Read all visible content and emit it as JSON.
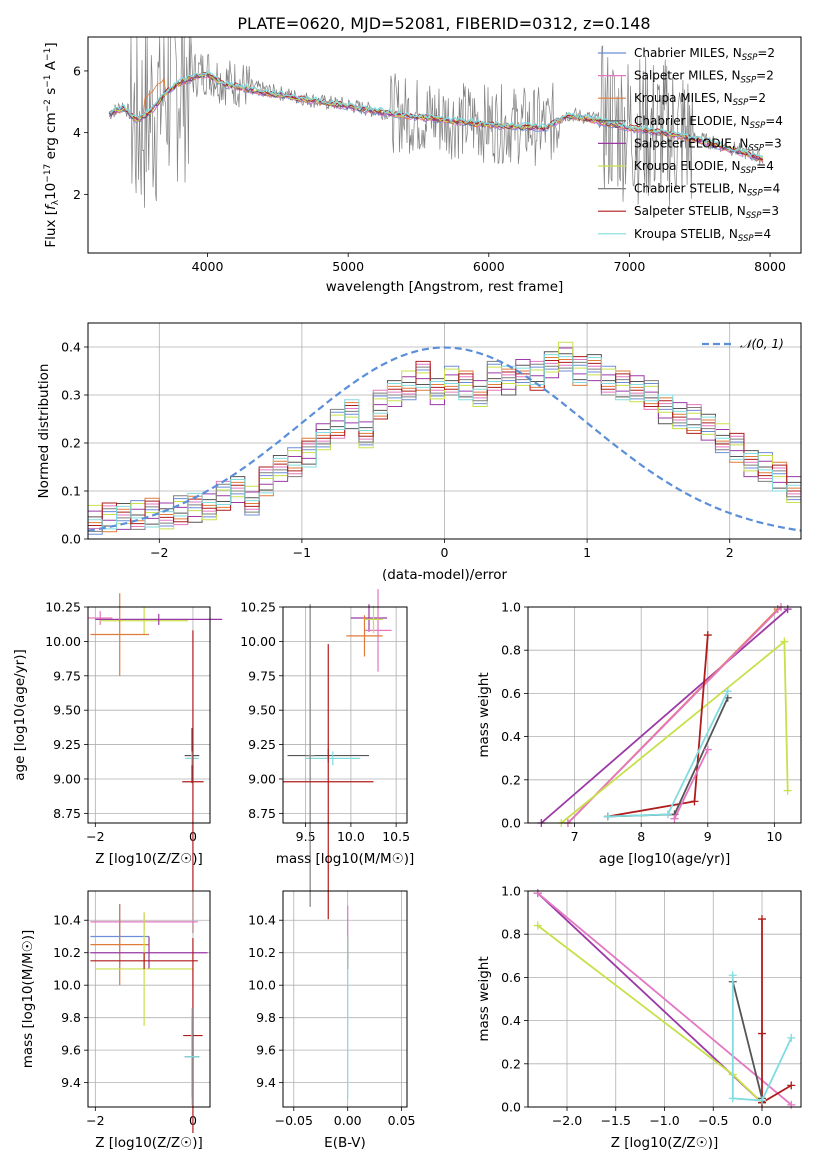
{
  "title": "PLATE=0620, MJD=52081, FIBERID=0312, z=0.148",
  "series_names": [
    {
      "base": "Chabrier MILES, N",
      "sub": "SSP",
      "tail": "=2",
      "color": "#6b8fd6"
    },
    {
      "base": "Salpeter MILES, N",
      "sub": "SSP",
      "tail": "=2",
      "color": "#e377c2"
    },
    {
      "base": "Kroupa MILES, N",
      "sub": "SSP",
      "tail": "=2",
      "color": "#e07b39"
    },
    {
      "base": "Chabrier ELODIE, N",
      "sub": "SSP",
      "tail": "=4",
      "color": "#555555"
    },
    {
      "base": "Salpeter ELODIE, N",
      "sub": "SSP",
      "tail": "=3",
      "color": "#9b3aa6"
    },
    {
      "base": "Kroupa ELODIE, N",
      "sub": "SSP",
      "tail": "=4",
      "color": "#c8e04a"
    },
    {
      "base": "Chabrier STELIB, N",
      "sub": "SSP",
      "tail": "=4",
      "color": "#7f7f7f"
    },
    {
      "base": "Salpeter STELIB, N",
      "sub": "SSP",
      "tail": "=3",
      "color": "#b01c1c"
    },
    {
      "base": "Kroupa STELIB, N",
      "sub": "SSP",
      "tail": "=4",
      "color": "#80dce0"
    }
  ],
  "chart_data": [
    {
      "id": "spectrum",
      "type": "line",
      "title": "PLATE=0620, MJD=52081, FIBERID=0312, z=0.148",
      "xlabel": "wavelength [Angstrom, rest frame]",
      "ylabel": "Flux [f_λ 10^-17 erg cm^-2 s^-1 A^-1]",
      "xlim": [
        3150,
        8220
      ],
      "ylim": [
        0.1,
        7.1
      ],
      "xticks": [
        "4000",
        "5000",
        "6000",
        "7000",
        "8000"
      ],
      "yticks": [
        "2",
        "4",
        "6"
      ],
      "grid": false,
      "legend": "upper right",
      "observed_spectrum": {
        "x": [
          3300,
          3400,
          3500,
          3600,
          3700,
          3800,
          3900,
          4000,
          4100,
          4200,
          4400,
          4600,
          4800,
          5000,
          5200,
          5400,
          5600,
          5800,
          6000,
          6200,
          6400,
          6560,
          6700,
          7000,
          7300,
          7500,
          7800,
          8000
        ],
        "y": [
          4.6,
          4.9,
          4.3,
          4.7,
          5.4,
          5.8,
          5.9,
          6.0,
          5.7,
          5.6,
          5.4,
          5.2,
          5.0,
          4.9,
          4.7,
          4.6,
          4.5,
          4.4,
          4.3,
          4.25,
          4.2,
          4.6,
          4.5,
          4.2,
          4.0,
          3.8,
          3.4,
          3.1
        ]
      },
      "model_spectrum": {
        "x": [
          3300,
          3400,
          3500,
          3600,
          3700,
          3800,
          3900,
          4000,
          4100,
          4200,
          4400,
          4600,
          4800,
          5000,
          5200,
          5400,
          5600,
          5800,
          6000,
          6200,
          6400,
          6560,
          6700,
          7000,
          7300,
          7500,
          7800,
          8000
        ],
        "y": [
          4.6,
          4.8,
          4.4,
          4.7,
          5.3,
          5.6,
          5.8,
          5.9,
          5.6,
          5.5,
          5.3,
          5.15,
          5.0,
          4.85,
          4.7,
          4.55,
          4.45,
          4.35,
          4.25,
          4.2,
          4.15,
          4.55,
          4.45,
          4.15,
          3.95,
          3.75,
          3.35,
          3.05
        ]
      }
    },
    {
      "id": "residuals",
      "type": "bar",
      "xlabel": "(data-model)/error",
      "ylabel": "Normed distribution",
      "xlim": [
        -2.5,
        2.5
      ],
      "ylim": [
        0,
        0.45
      ],
      "xticks": [
        "−2",
        "−1",
        "0",
        "1",
        "2"
      ],
      "yticks": [
        "0.0",
        "0.1",
        "0.2",
        "0.3",
        "0.4"
      ],
      "grid": true,
      "legend": "upper right",
      "gaussian_label": "𝒩(0, 1)",
      "bin_edges_start": -2.5,
      "bin_width": 0.1,
      "hist_values": [
        0.04,
        0.045,
        0.05,
        0.05,
        0.055,
        0.045,
        0.06,
        0.065,
        0.07,
        0.09,
        0.1,
        0.08,
        0.12,
        0.15,
        0.16,
        0.18,
        0.21,
        0.24,
        0.26,
        0.22,
        0.28,
        0.3,
        0.32,
        0.34,
        0.31,
        0.33,
        0.32,
        0.3,
        0.34,
        0.33,
        0.35,
        0.34,
        0.36,
        0.38,
        0.35,
        0.36,
        0.33,
        0.32,
        0.31,
        0.3,
        0.27,
        0.26,
        0.25,
        0.23,
        0.21,
        0.19,
        0.16,
        0.15,
        0.13,
        0.1
      ]
    },
    {
      "id": "age-vs-Z",
      "type": "scatter",
      "xlabel": "Z [log10(Z/Z☉)]",
      "ylabel": "age [log10(age/yr)]",
      "xlim": [
        -2.15,
        0.35
      ],
      "ylim": [
        8.68,
        10.25
      ],
      "xticks": [
        "−2",
        "0"
      ],
      "yticks": [
        "8.75",
        "9.00",
        "9.25",
        "9.50",
        "9.75",
        "10.00",
        "10.25"
      ],
      "grid": true,
      "points": [
        {
          "x": -1.9,
          "y": 10.17,
          "xerr": 0.25,
          "yerr": 0.05,
          "series": 1
        },
        {
          "x": -1.0,
          "y": 10.15,
          "xerr": 0.9,
          "yerr": 0.1,
          "series": 5
        },
        {
          "x": -0.7,
          "y": 10.16,
          "xerr": 1.3,
          "yerr": 0.04,
          "series": 4
        },
        {
          "x": -1.5,
          "y": 10.05,
          "xerr": 0.6,
          "yerr": 0.3,
          "series": 2
        },
        {
          "x": -0.02,
          "y": 9.17,
          "xerr": 0.15,
          "yerr": 0.2,
          "series": 3
        },
        {
          "x": -0.02,
          "y": 9.15,
          "xerr": 0.14,
          "yerr": 0.05,
          "series": 8
        },
        {
          "x": 0.0,
          "y": 8.98,
          "xerr": 0.22,
          "yerr": 1.1,
          "series": 7
        }
      ]
    },
    {
      "id": "age-vs-mass",
      "type": "scatter",
      "xlabel": "mass [log10(M/M☉)]",
      "ylabel": "",
      "xlim": [
        9.25,
        10.62
      ],
      "ylim": [
        8.68,
        10.25
      ],
      "xticks": [
        "9.5",
        "10.0",
        "10.5"
      ],
      "yticks": [
        "8.75",
        "9.00",
        "9.25",
        "9.50",
        "9.75",
        "10.00",
        "10.25"
      ],
      "grid": true,
      "points": [
        {
          "x": 10.2,
          "y": 10.17,
          "xerr": 0.2,
          "yerr": 0.1,
          "series": 4
        },
        {
          "x": 10.3,
          "y": 10.08,
          "xerr": 0.15,
          "yerr": 0.3,
          "series": 1
        },
        {
          "x": 10.15,
          "y": 10.04,
          "xerr": 0.2,
          "yerr": 0.15,
          "series": 2
        },
        {
          "x": 10.25,
          "y": 10.16,
          "xerr": 0.1,
          "yerr": 0.1,
          "series": 5
        },
        {
          "x": 9.75,
          "y": 9.17,
          "xerr": 0.45,
          "yerr": 0.05,
          "series": 3
        },
        {
          "x": 9.8,
          "y": 9.15,
          "xerr": 0.3,
          "yerr": 0.05,
          "series": 8
        },
        {
          "x": 9.55,
          "y": 9.17,
          "xerr": 0.05,
          "yerr": 1.1,
          "series": 6
        },
        {
          "x": 9.75,
          "y": 8.98,
          "xerr": 0.5,
          "yerr": 1.0,
          "series": 7
        }
      ]
    },
    {
      "id": "mass-weight-vs-age",
      "type": "line",
      "xlabel": "age [log10(age/yr)]",
      "ylabel": "mass weight",
      "xlim": [
        6.3,
        10.4
      ],
      "ylim": [
        0,
        1
      ],
      "xticks": [
        "7",
        "8",
        "9",
        "10"
      ],
      "yticks": [
        "0.0",
        "0.2",
        "0.4",
        "0.6",
        "0.8",
        "1.0"
      ],
      "grid": true,
      "series": [
        {
          "series": 4,
          "x": [
            6.5,
            10.2
          ],
          "y": [
            0.0,
            0.99
          ]
        },
        {
          "series": 2,
          "x": [
            6.9,
            10.05
          ],
          "y": [
            0.0,
            0.99
          ]
        },
        {
          "series": 1,
          "x": [
            6.9,
            10.1
          ],
          "y": [
            0.0,
            1.0
          ]
        },
        {
          "series": 5,
          "x": [
            6.8,
            10.15,
            10.2
          ],
          "y": [
            0.0,
            0.84,
            0.15
          ]
        },
        {
          "series": 7,
          "x": [
            7.5,
            8.8,
            9.0
          ],
          "y": [
            0.03,
            0.1,
            0.87
          ]
        },
        {
          "series": 3,
          "x": [
            7.5,
            8.5,
            9.3
          ],
          "y": [
            0.03,
            0.04,
            0.58
          ]
        },
        {
          "series": 8,
          "x": [
            7.5,
            8.4,
            9.3
          ],
          "y": [
            0.03,
            0.04,
            0.61
          ]
        },
        {
          "series": 1,
          "x": [
            8.5,
            9.0
          ],
          "y": [
            0.02,
            0.34
          ]
        }
      ]
    },
    {
      "id": "mass-vs-Z",
      "type": "scatter",
      "xlabel": "Z [log10(Z/Z☉)]",
      "ylabel": "mass [log10(M/M☉)]",
      "xlim": [
        -2.15,
        0.35
      ],
      "ylim": [
        9.25,
        10.58
      ],
      "xticks": [
        "−2",
        "0"
      ],
      "yticks": [
        "9.4",
        "9.6",
        "9.8",
        "10.0",
        "10.2",
        "10.4"
      ],
      "grid": true,
      "points": [
        {
          "x": -1.0,
          "y": 10.39,
          "xerr": 1.1,
          "yerr": 0.05,
          "series": 1
        },
        {
          "x": -1.5,
          "y": 10.3,
          "xerr": 0.6,
          "yerr": 0.2,
          "series": 0
        },
        {
          "x": -1.5,
          "y": 10.25,
          "xerr": 0.6,
          "yerr": 0.25,
          "series": 2
        },
        {
          "x": -0.9,
          "y": 10.2,
          "xerr": 1.2,
          "yerr": 0.1,
          "series": 4
        },
        {
          "x": -1.0,
          "y": 10.1,
          "xerr": 1.0,
          "yerr": 0.35,
          "series": 5
        },
        {
          "x": -1.0,
          "y": 10.15,
          "xerr": 1.1,
          "yerr": 0.05,
          "series": 7
        },
        {
          "x": 0.0,
          "y": 9.69,
          "xerr": 0.2,
          "yerr": 0.6,
          "series": 7
        },
        {
          "x": -0.02,
          "y": 9.56,
          "xerr": 0.15,
          "yerr": 0.25,
          "series": 3
        },
        {
          "x": -0.02,
          "y": 9.56,
          "xerr": 0.15,
          "yerr": 0.3,
          "series": 8
        }
      ]
    },
    {
      "id": "mass-vs-EBV",
      "type": "scatter",
      "xlabel": "E(B-V)",
      "ylabel": "",
      "xlim": [
        -0.06,
        0.055
      ],
      "ylim": [
        9.25,
        10.58
      ],
      "xticks": [
        "−0.05",
        "0.00",
        "0.05"
      ],
      "yticks": [
        "9.4",
        "9.6",
        "9.8",
        "10.0",
        "10.2",
        "10.4"
      ],
      "grid": true,
      "points": [
        {
          "x": 0.0,
          "y": 10.39,
          "xerr": 0.0,
          "yerr": 0.1,
          "series": 1
        },
        {
          "x": 0.0,
          "y": 10.2,
          "xerr": 0.0,
          "yerr": 0.1,
          "series": 7
        },
        {
          "x": 0.0,
          "y": 9.8,
          "xerr": 0.0,
          "yerr": 0.5,
          "series": 8
        }
      ]
    },
    {
      "id": "mass-weight-vs-Z",
      "type": "line",
      "xlabel": "Z [log10(Z/Z☉)]",
      "ylabel": "mass weight",
      "xlim": [
        -2.4,
        0.4
      ],
      "ylim": [
        0,
        1
      ],
      "xticks": [
        "−2.0",
        "−1.5",
        "−1.0",
        "−0.5",
        "0.0"
      ],
      "yticks": [
        "0.0",
        "0.2",
        "0.4",
        "0.6",
        "0.8",
        "1.0"
      ],
      "grid": true,
      "series": [
        {
          "series": 4,
          "x": [
            -2.3,
            0.0
          ],
          "y": [
            0.99,
            0.02
          ]
        },
        {
          "series": 1,
          "x": [
            -2.3,
            0.3
          ],
          "y": [
            0.99,
            0.01
          ]
        },
        {
          "series": 5,
          "x": [
            -2.3,
            -0.3,
            0.0
          ],
          "y": [
            0.84,
            0.15,
            0.02
          ]
        },
        {
          "series": 7,
          "x": [
            0.0,
            0.0,
            0.0,
            0.3
          ],
          "y": [
            0.87,
            0.34,
            0.02,
            0.1
          ]
        },
        {
          "series": 3,
          "x": [
            -0.3,
            0.0
          ],
          "y": [
            0.58,
            0.04
          ]
        },
        {
          "series": 8,
          "x": [
            -0.3,
            -0.3,
            0.0,
            0.3
          ],
          "y": [
            0.61,
            0.04,
            0.03,
            0.32
          ]
        }
      ]
    }
  ]
}
